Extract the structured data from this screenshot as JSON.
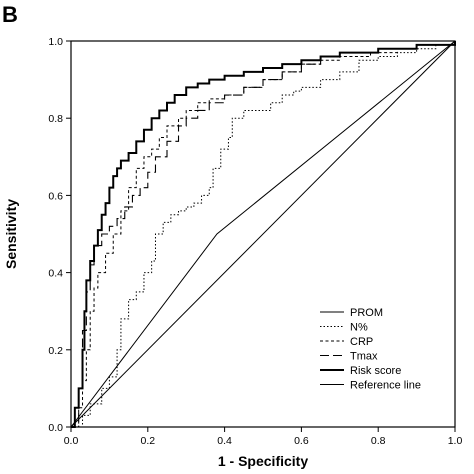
{
  "panel_label": "B",
  "chart_data": {
    "type": "line",
    "xlabel": "1 - Specificity",
    "ylabel": "Sensitivity",
    "xlim": [
      0.0,
      1.0
    ],
    "ylim": [
      0.0,
      1.0
    ],
    "xticks": [
      "0.0",
      "0.2",
      "0.4",
      "0.6",
      "0.8",
      "1.0"
    ],
    "yticks": [
      "0.0",
      "0.2",
      "0.4",
      "0.6",
      "0.8",
      "1.0"
    ],
    "grid": false,
    "legend_position": "bottom-right",
    "series": [
      {
        "name": "PROM",
        "style": "solid-thin",
        "points": [
          [
            0,
            0
          ],
          [
            0.38,
            0.5
          ],
          [
            1,
            1
          ]
        ]
      },
      {
        "name": "N%",
        "style": "dotted",
        "points": [
          [
            0,
            0
          ],
          [
            0.03,
            0.03
          ],
          [
            0.05,
            0.06
          ],
          [
            0.08,
            0.1
          ],
          [
            0.1,
            0.13
          ],
          [
            0.12,
            0.2
          ],
          [
            0.13,
            0.28
          ],
          [
            0.15,
            0.33
          ],
          [
            0.17,
            0.35
          ],
          [
            0.19,
            0.4
          ],
          [
            0.21,
            0.43
          ],
          [
            0.22,
            0.5
          ],
          [
            0.24,
            0.53
          ],
          [
            0.26,
            0.55
          ],
          [
            0.28,
            0.56
          ],
          [
            0.3,
            0.57
          ],
          [
            0.32,
            0.58
          ],
          [
            0.34,
            0.6
          ],
          [
            0.36,
            0.62
          ],
          [
            0.37,
            0.67
          ],
          [
            0.39,
            0.72
          ],
          [
            0.41,
            0.75
          ],
          [
            0.42,
            0.8
          ],
          [
            0.45,
            0.82
          ],
          [
            0.5,
            0.82
          ],
          [
            0.52,
            0.84
          ],
          [
            0.55,
            0.86
          ],
          [
            0.58,
            0.87
          ],
          [
            0.6,
            0.88
          ],
          [
            0.65,
            0.9
          ],
          [
            0.7,
            0.92
          ],
          [
            0.75,
            0.95
          ],
          [
            0.8,
            0.96
          ],
          [
            0.85,
            0.97
          ],
          [
            0.9,
            0.98
          ],
          [
            0.95,
            0.99
          ],
          [
            1,
            1
          ]
        ]
      },
      {
        "name": "CRP",
        "style": "short-dash",
        "points": [
          [
            0,
            0
          ],
          [
            0.02,
            0.05
          ],
          [
            0.03,
            0.12
          ],
          [
            0.04,
            0.2
          ],
          [
            0.05,
            0.3
          ],
          [
            0.06,
            0.36
          ],
          [
            0.07,
            0.4
          ],
          [
            0.09,
            0.45
          ],
          [
            0.11,
            0.5
          ],
          [
            0.13,
            0.56
          ],
          [
            0.15,
            0.62
          ],
          [
            0.17,
            0.67
          ],
          [
            0.19,
            0.7
          ],
          [
            0.21,
            0.72
          ],
          [
            0.23,
            0.75
          ],
          [
            0.25,
            0.78
          ],
          [
            0.28,
            0.8
          ],
          [
            0.3,
            0.82
          ],
          [
            0.33,
            0.84
          ],
          [
            0.36,
            0.85
          ],
          [
            0.4,
            0.86
          ],
          [
            0.45,
            0.88
          ],
          [
            0.5,
            0.9
          ],
          [
            0.55,
            0.92
          ],
          [
            0.6,
            0.94
          ],
          [
            0.65,
            0.95
          ],
          [
            0.7,
            0.96
          ],
          [
            0.78,
            0.97
          ],
          [
            0.85,
            0.98
          ],
          [
            0.9,
            0.99
          ],
          [
            1,
            1
          ]
        ]
      },
      {
        "name": "Tmax",
        "style": "long-dash",
        "points": [
          [
            0,
            0
          ],
          [
            0.02,
            0.1
          ],
          [
            0.03,
            0.25
          ],
          [
            0.04,
            0.35
          ],
          [
            0.05,
            0.42
          ],
          [
            0.06,
            0.47
          ],
          [
            0.08,
            0.5
          ],
          [
            0.1,
            0.52
          ],
          [
            0.12,
            0.54
          ],
          [
            0.14,
            0.57
          ],
          [
            0.16,
            0.6
          ],
          [
            0.18,
            0.62
          ],
          [
            0.2,
            0.66
          ],
          [
            0.22,
            0.7
          ],
          [
            0.25,
            0.74
          ],
          [
            0.28,
            0.78
          ],
          [
            0.3,
            0.8
          ],
          [
            0.33,
            0.82
          ],
          [
            0.36,
            0.84
          ],
          [
            0.4,
            0.86
          ],
          [
            0.45,
            0.88
          ],
          [
            0.5,
            0.9
          ],
          [
            0.55,
            0.92
          ],
          [
            0.6,
            0.94
          ],
          [
            0.65,
            0.96
          ],
          [
            0.7,
            0.97
          ],
          [
            0.8,
            0.98
          ],
          [
            0.9,
            0.99
          ],
          [
            1,
            1
          ]
        ]
      },
      {
        "name": "Risk score",
        "style": "solid-thick",
        "points": [
          [
            0,
            0
          ],
          [
            0.01,
            0.05
          ],
          [
            0.02,
            0.1
          ],
          [
            0.03,
            0.2
          ],
          [
            0.035,
            0.3
          ],
          [
            0.04,
            0.38
          ],
          [
            0.05,
            0.43
          ],
          [
            0.06,
            0.47
          ],
          [
            0.07,
            0.51
          ],
          [
            0.08,
            0.55
          ],
          [
            0.09,
            0.58
          ],
          [
            0.1,
            0.62
          ],
          [
            0.11,
            0.65
          ],
          [
            0.12,
            0.67
          ],
          [
            0.13,
            0.69
          ],
          [
            0.15,
            0.71
          ],
          [
            0.17,
            0.74
          ],
          [
            0.19,
            0.77
          ],
          [
            0.21,
            0.8
          ],
          [
            0.23,
            0.82
          ],
          [
            0.25,
            0.84
          ],
          [
            0.27,
            0.86
          ],
          [
            0.3,
            0.88
          ],
          [
            0.33,
            0.89
          ],
          [
            0.36,
            0.9
          ],
          [
            0.4,
            0.91
          ],
          [
            0.45,
            0.92
          ],
          [
            0.5,
            0.93
          ],
          [
            0.55,
            0.94
          ],
          [
            0.6,
            0.95
          ],
          [
            0.65,
            0.96
          ],
          [
            0.7,
            0.97
          ],
          [
            0.8,
            0.98
          ],
          [
            0.9,
            0.99
          ],
          [
            1,
            1
          ]
        ]
      },
      {
        "name": "Reference line",
        "style": "solid-reference",
        "points": [
          [
            0,
            0
          ],
          [
            1,
            1
          ]
        ]
      }
    ]
  }
}
